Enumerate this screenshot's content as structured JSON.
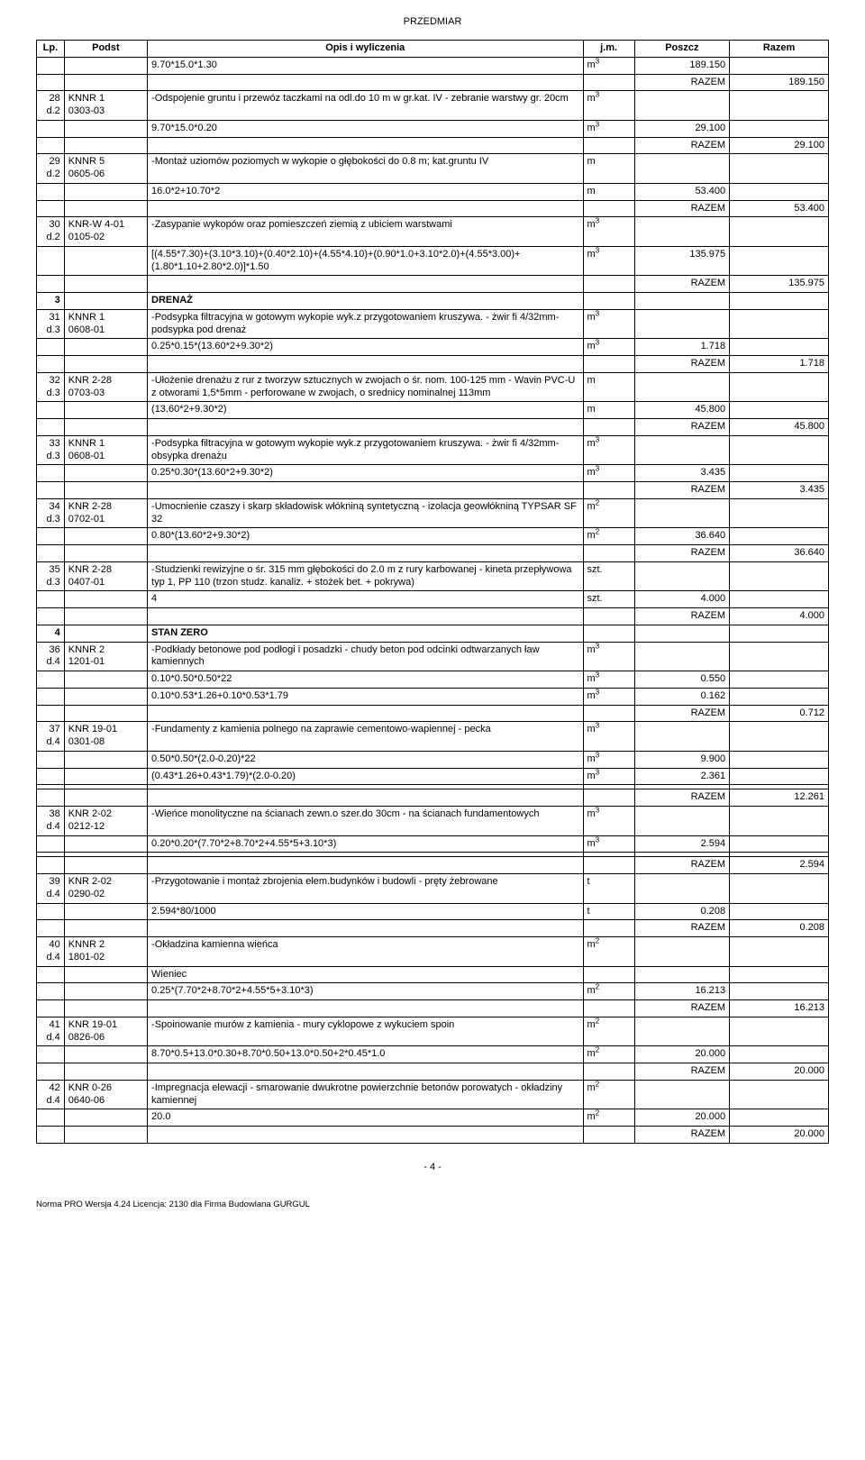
{
  "doc_title": "PRZEDMIAR",
  "columns": {
    "lp": "Lp.",
    "podst": "Podst",
    "opis": "Opis i wyliczenia",
    "jm": "j.m.",
    "poszcz": "Poszcz",
    "razem": "Razem"
  },
  "razem_label": "RAZEM",
  "footer_page": "- 4 -",
  "license": "Norma PRO Wersja 4.24 Licencja: 2130 dla Firma Budowlana GURGUL",
  "calc": {
    "r0": {
      "opis": "9.70*15.0*1.30",
      "jm": "m³",
      "poszcz": "189.150"
    },
    "rz0": "189.150",
    "i28": {
      "lp": "28",
      "podst1": "KNNR 1",
      "podst2": "0303-03",
      "opis": "-Odspojenie gruntu i przewóz taczkami na odl.do 10 m w gr.kat. IV - zebranie warstwy gr. 20cm",
      "jm": "m³"
    },
    "r28": {
      "opis": "9.70*15.0*0.20",
      "jm": "m³",
      "poszcz": "29.100"
    },
    "rz28": "29.100",
    "i29": {
      "lp": "29",
      "podst1": "KNNR 5",
      "podst2": "0605-06",
      "opis": "-Montaż uziomów poziomych w wykopie o głębokości do 0.8 m; kat.gruntu IV",
      "jm": "m"
    },
    "r29": {
      "opis": "16.0*2+10.70*2",
      "jm": "m",
      "poszcz": "53.400"
    },
    "rz29": "53.400",
    "i30": {
      "lp": "30",
      "podst1": "KNR-W 4-01",
      "podst2": "0105-02",
      "opis": "-Zasypanie wykopów oraz pomieszczeń ziemią z ubiciem warstwami",
      "jm": "m³"
    },
    "r30": {
      "opis": "[(4.55*7.30)+(3.10*3.10)+(0.40*2.10)+(4.55*4.10)+(0.90*1.0+3.10*2.0)+(4.55*3.00)+(1.80*1.10+2.80*2.0)]*1.50",
      "jm": "m³",
      "poszcz": "135.975"
    },
    "rz30": "135.975",
    "s3": {
      "lp": "3",
      "title": "DRENAŻ"
    },
    "i31": {
      "lp": "31",
      "podst1": "KNNR 1",
      "podst2": "0608-01",
      "opis": "-Podsypka filtracyjna w gotowym wykopie wyk.z przygotowaniem kruszywa. - żwir fi 4/32mm-podsypka pod drenaż",
      "jm": "m³"
    },
    "r31": {
      "opis": "0.25*0.15*(13.60*2+9.30*2)",
      "jm": "m³",
      "poszcz": "1.718"
    },
    "rz31": "1.718",
    "i32": {
      "lp": "32",
      "podst1": "KNR 2-28",
      "podst2": "0703-03",
      "opis": "-Ułożenie drenażu z rur z tworzyw sztucznych w zwojach o śr. nom. 100-125 mm - Wavin PVC-U z otworami 1,5*5mm - perforowane w zwojach, o srednicy nominalnej 113mm",
      "jm": "m"
    },
    "r32": {
      "opis": "(13.60*2+9.30*2)",
      "jm": "m",
      "poszcz": "45.800"
    },
    "rz32": "45.800",
    "i33": {
      "lp": "33",
      "podst1": "KNNR 1",
      "podst2": "0608-01",
      "opis": "-Podsypka filtracyjna w gotowym wykopie wyk.z przygotowaniem kruszywa. - żwir fi 4/32mm-obsypka drenażu",
      "jm": "m³"
    },
    "r33": {
      "opis": "0.25*0.30*(13.60*2+9.30*2)",
      "jm": "m³",
      "poszcz": "3.435"
    },
    "rz33": "3.435",
    "i34": {
      "lp": "34",
      "podst1": "KNR 2-28",
      "podst2": "0702-01",
      "opis": "-Umocnienie czaszy i skarp składowisk włókniną syntetyczną - izolacja geowłókniną TYPSAR SF 32",
      "jm": "m²"
    },
    "r34": {
      "opis": "0.80*(13.60*2+9.30*2)",
      "jm": "m²",
      "poszcz": "36.640"
    },
    "rz34": "36.640",
    "i35": {
      "lp": "35",
      "podst1": "KNR 2-28",
      "podst2": "0407-01",
      "opis": "-Studzienki rewizyjne o śr. 315 mm głębokości do 2.0 m z rury karbowanej - kineta przepływowa typ 1, PP 110  (trzon studz. kanaliz. + stożek bet. + pokrywa)",
      "jm": "szt."
    },
    "r35": {
      "opis": "4",
      "jm": "szt.",
      "poszcz": "4.000"
    },
    "rz35": "4.000",
    "s4": {
      "lp": "4",
      "title": "STAN ZERO"
    },
    "i36": {
      "lp": "36",
      "podst1": "KNNR 2",
      "podst2": "1201-01",
      "opis": "-Podkłady betonowe pod podłogi i posadzki - chudy beton pod odcinki odtwarzanych ław kamiennych",
      "jm": "m³"
    },
    "r36a": {
      "opis": "0.10*0.50*0.50*22",
      "jm": "m³",
      "poszcz": "0.550"
    },
    "r36b": {
      "opis": "0.10*0.53*1.26+0.10*0.53*1.79",
      "jm": "m³",
      "poszcz": "0.162"
    },
    "rz36": "0.712",
    "i37": {
      "lp": "37",
      "podst1": "KNR 19-01",
      "podst2": "0301-08",
      "opis": "-Fundamenty z kamienia polnego na zaprawie cementowo-wapiennej - pecka",
      "jm": "m³"
    },
    "r37a": {
      "opis": "0.50*0.50*(2.0-0.20)*22",
      "jm": "m³",
      "poszcz": "9.900"
    },
    "r37b": {
      "opis": "(0.43*1.26+0.43*1.79)*(2.0-0.20)",
      "jm": "m³",
      "poszcz": "2.361"
    },
    "rz37": "12.261",
    "i38": {
      "lp": "38",
      "podst1": "KNR 2-02",
      "podst2": "0212-12",
      "opis": "-Wieńce monolityczne na ścianach zewn.o szer.do 30cm - na ścianach fundamentowych",
      "jm": "m³"
    },
    "r38": {
      "opis": "0.20*0.20*(7.70*2+8.70*2+4.55*5+3.10*3)",
      "jm": "m³",
      "poszcz": "2.594"
    },
    "rz38": "2.594",
    "i39": {
      "lp": "39",
      "podst1": "KNR 2-02",
      "podst2": "0290-02",
      "opis": "-Przygotowanie i montaż zbrojenia elem.budynków i budowli - pręty żebrowane",
      "jm": "t"
    },
    "r39": {
      "opis": "2.594*80/1000",
      "jm": "t",
      "poszcz": "0.208"
    },
    "rz39": "0.208",
    "i40": {
      "lp": "40",
      "podst1": "KNNR 2",
      "podst2": "1801-02",
      "opis": "-Okładzina kamienna wieńca",
      "jm": "m²"
    },
    "r40l": {
      "opis": "Wieniec"
    },
    "r40": {
      "opis": "0.25*(7.70*2+8.70*2+4.55*5+3.10*3)",
      "jm": "m²",
      "poszcz": "16.213"
    },
    "rz40": "16.213",
    "i41": {
      "lp": "41",
      "podst1": "KNR 19-01",
      "podst2": "0826-06",
      "opis": "-Spoinowanie murów z kamienia - mury cyklopowe z wykuciem spoin",
      "jm": "m²"
    },
    "r41": {
      "opis": "8.70*0.5+13.0*0.30+8.70*0.50+13.0*0.50+2*0.45*1.0",
      "jm": "m²",
      "poszcz": "20.000"
    },
    "rz41": "20.000",
    "i42": {
      "lp": "42",
      "podst1": "KNR 0-26",
      "podst2": "0640-06",
      "opis": "-Impregnacja elewacji - smarowanie dwukrotne powierzchnie betonów porowatych - okładziny kamiennej",
      "jm": "m²"
    },
    "r42": {
      "opis": "20.0",
      "jm": "m²",
      "poszcz": "20.000"
    },
    "rz42": "20.000"
  },
  "dprefix": {
    "d2": "d.2",
    "d3": "d.3",
    "d4": "d.4"
  }
}
